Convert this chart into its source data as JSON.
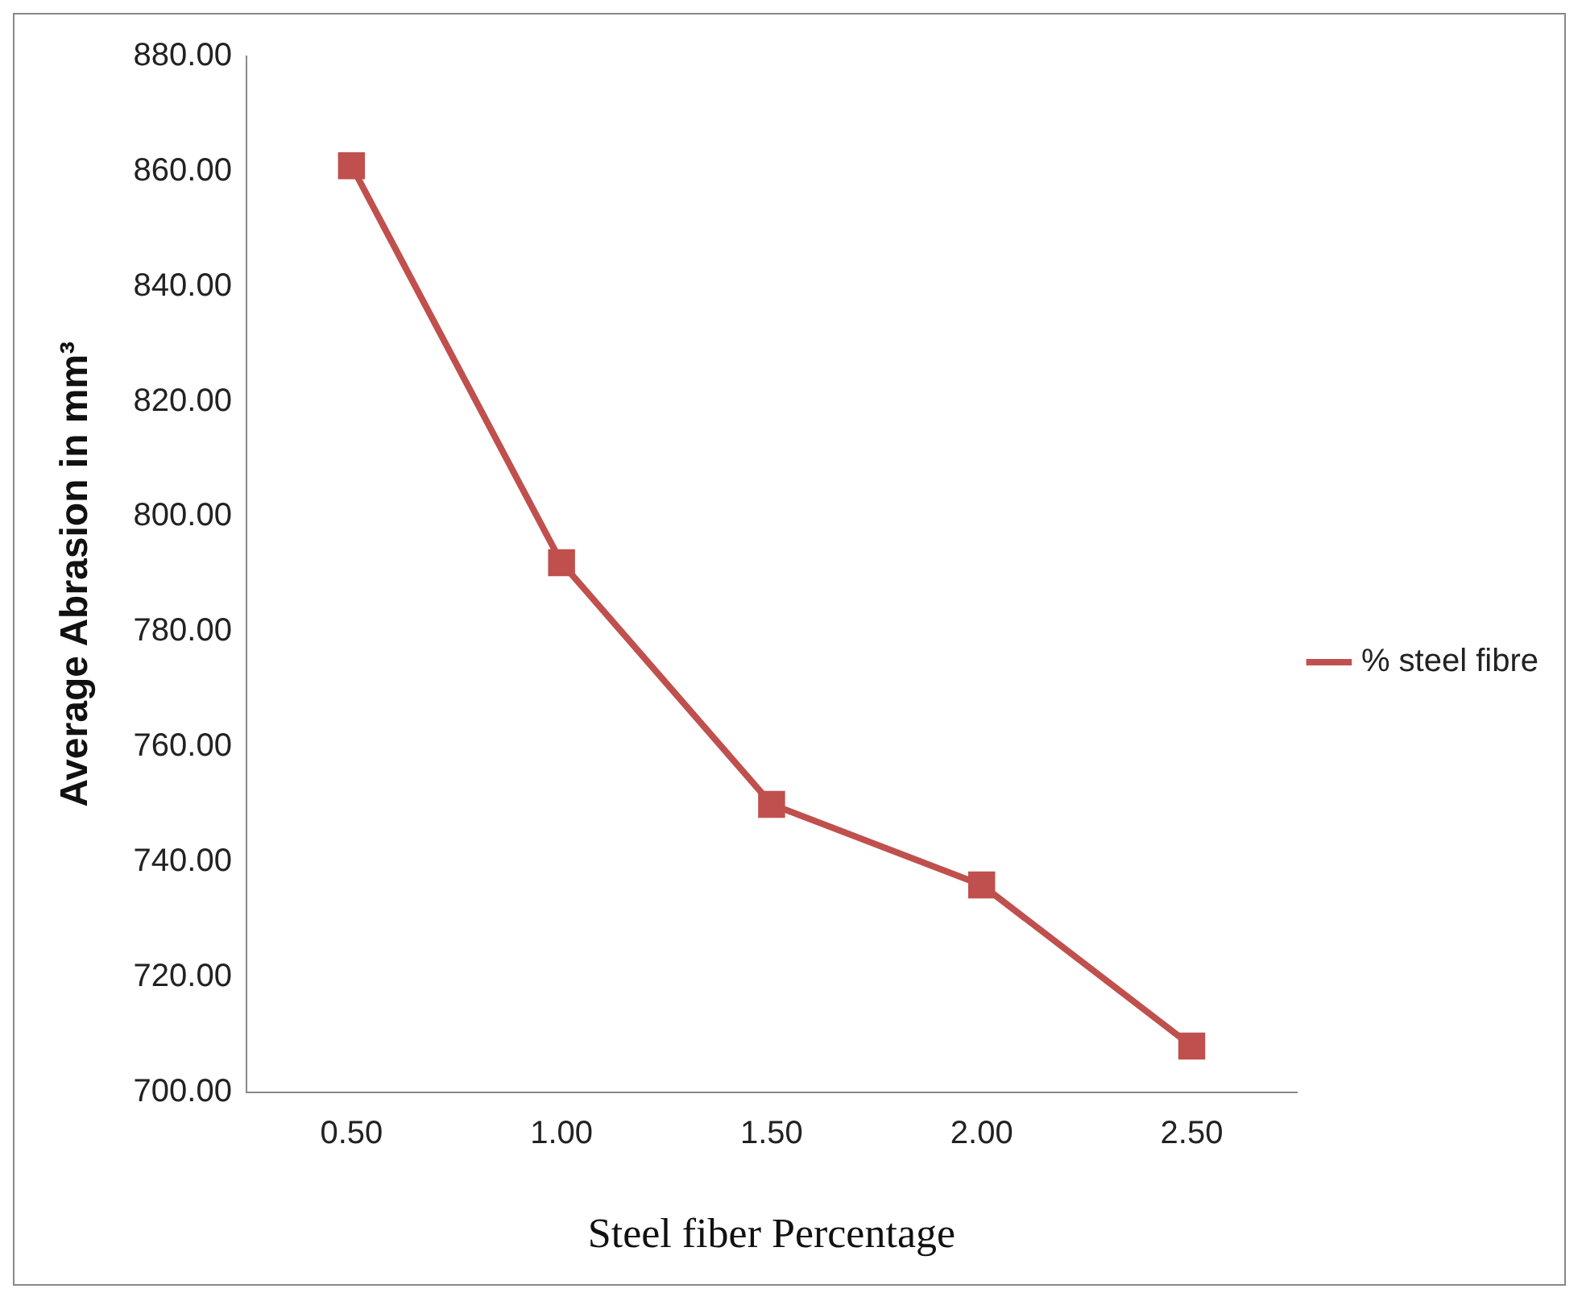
{
  "chart_data": {
    "type": "line",
    "xlabel": "Steel fiber Percentage",
    "ylabel": "Average Abrasion in mm³",
    "categories": [
      "0.50",
      "1.00",
      "1.50",
      "2.00",
      "2.50"
    ],
    "series": [
      {
        "name": "% steel fibre",
        "color": "#c0504d",
        "values": [
          861,
          792,
          750,
          736,
          708
        ]
      }
    ],
    "ylim": [
      700,
      880
    ],
    "yticks": [
      {
        "value": 700,
        "label": "700.00"
      },
      {
        "value": 720,
        "label": "720.00"
      },
      {
        "value": 740,
        "label": "740.00"
      },
      {
        "value": 760,
        "label": "760.00"
      },
      {
        "value": 780,
        "label": "780.00"
      },
      {
        "value": 800,
        "label": "800.00"
      },
      {
        "value": 820,
        "label": "820.00"
      },
      {
        "value": 840,
        "label": "840.00"
      },
      {
        "value": 860,
        "label": "860.00"
      },
      {
        "value": 880,
        "label": "880.00"
      }
    ],
    "grid": false,
    "legend": "right",
    "marker": "square",
    "line_style": "solid"
  }
}
